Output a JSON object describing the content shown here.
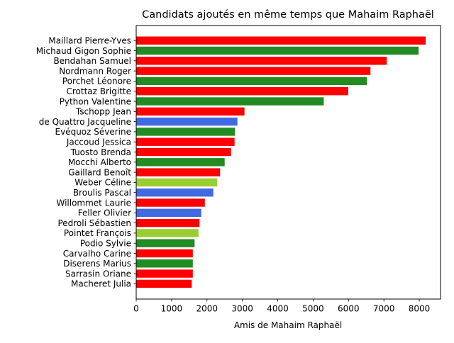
{
  "chart_data": {
    "type": "bar",
    "orientation": "horizontal",
    "title": "Candidats ajoutés en même temps que Mahaim Raphaël",
    "xlabel": "Amis de Mahaim Raphaël",
    "ylabel": "",
    "xlim": [
      0,
      8600
    ],
    "xticks": [
      0,
      1000,
      2000,
      3000,
      4000,
      5000,
      6000,
      7000,
      8000
    ],
    "grid": false,
    "legend": "none",
    "categories": [
      "Maillard Pierre-Yves",
      "Michaud Gigon Sophie",
      "Bendahan Samuel",
      "Nordmann Roger",
      "Porchet Léonore",
      "Crottaz Brigitte",
      "Python Valentine",
      "Tschopp Jean",
      "de Quattro Jacqueline",
      "Evéquoz Séverine",
      "Jaccoud Jessica",
      "Tuosto Brenda",
      "Mocchi Alberto",
      "Gaillard Benoît",
      "Weber Céline",
      "Broulis Pascal",
      "Willommet Laurie",
      "Feller Olivier",
      "Pedroli Sébastien",
      "Pointet François",
      "Podio Sylvie",
      "Carvalho Carine",
      "Diserens Marius",
      "Sarrasin Oriane",
      "Macheret Julia"
    ],
    "values": [
      8180,
      7980,
      7080,
      6620,
      6520,
      5990,
      5300,
      3060,
      2860,
      2790,
      2780,
      2680,
      2500,
      2370,
      2290,
      2180,
      1940,
      1840,
      1790,
      1760,
      1650,
      1600,
      1600,
      1600,
      1570
    ],
    "colors": [
      "#ff0000",
      "#228b22",
      "#ff0000",
      "#ff0000",
      "#228b22",
      "#ff0000",
      "#228b22",
      "#ff0000",
      "#4169e1",
      "#228b22",
      "#ff0000",
      "#ff0000",
      "#228b22",
      "#ff0000",
      "#9acd32",
      "#4169e1",
      "#ff0000",
      "#4169e1",
      "#ff0000",
      "#9acd32",
      "#228b22",
      "#ff0000",
      "#228b22",
      "#ff0000",
      "#ff0000"
    ]
  }
}
